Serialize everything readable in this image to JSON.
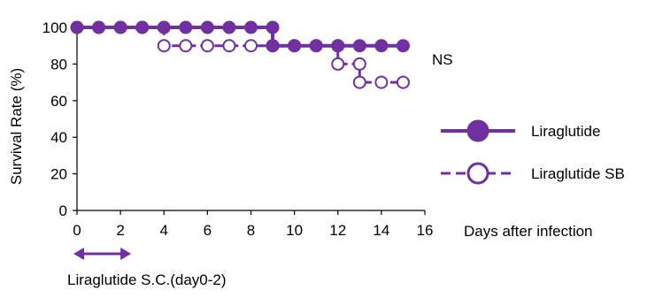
{
  "chart_data": {
    "type": "line",
    "subtype": "survival-step",
    "ylabel": "Survival Rate (%)",
    "xlabel": "Days after infection",
    "xlim": [
      0,
      16
    ],
    "ylim": [
      0,
      100
    ],
    "xticks": [
      0,
      2,
      4,
      6,
      8,
      10,
      12,
      14,
      16
    ],
    "yticks": [
      0,
      20,
      40,
      60,
      80,
      100
    ],
    "grid": false,
    "legend_position": "right",
    "annotation": "NS",
    "dosing_label": "Liraglutide S.C.(day0-2)",
    "dosing_range": [
      0,
      2
    ],
    "color": "#7030a0",
    "series": [
      {
        "name": "Liraglutide",
        "marker": "filled-circle",
        "line": "solid",
        "x": [
          0,
          1,
          2,
          3,
          4,
          5,
          6,
          7,
          8,
          9,
          10,
          11,
          12,
          13,
          14,
          15
        ],
        "y": [
          100,
          100,
          100,
          100,
          100,
          100,
          100,
          100,
          100,
          90,
          90,
          90,
          90,
          90,
          90,
          90
        ]
      },
      {
        "name": "Liraglutide SB",
        "marker": "open-circle",
        "line": "dashed",
        "x": [
          0,
          1,
          2,
          3,
          4,
          5,
          6,
          7,
          8,
          9,
          10,
          11,
          12,
          13,
          14,
          15
        ],
        "y": [
          100,
          100,
          100,
          100,
          90,
          90,
          90,
          90,
          90,
          90,
          90,
          90,
          80,
          70,
          70,
          70
        ]
      }
    ]
  }
}
